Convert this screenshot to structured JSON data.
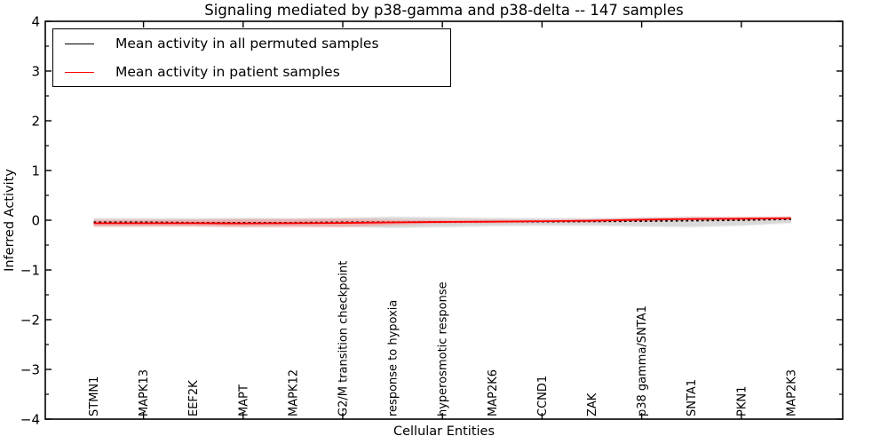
{
  "chart_data": {
    "type": "line",
    "title": "Signaling mediated by p38-gamma and p38-delta -- 147 samples",
    "xlabel": "Cellular Entities",
    "ylabel": "Inferred Activity",
    "ylim": [
      -4,
      4
    ],
    "yticks": [
      4,
      3,
      2,
      1,
      0,
      -1,
      -2,
      -3,
      -4
    ],
    "ytick_labels": [
      "4",
      "3",
      "2",
      "1",
      "0",
      "−1",
      "−2",
      "−3",
      "−4"
    ],
    "y_minor_tick_step": 0.5,
    "grid": false,
    "legend_position": "upper left",
    "categories": [
      "STMN1",
      "MAPK13",
      "EEF2K",
      "MAPT",
      "MAPK12",
      "G2/M transition checkpoint",
      "response to hypoxia",
      "hyperosmotic response",
      "MAP2K6",
      "CCND1",
      "ZAK",
      "p38 gamma/SNTA1",
      "SNTA1",
      "PKN1",
      "MAP2K3"
    ],
    "major_x_tick_indices": [
      1,
      3,
      5,
      7,
      9,
      11,
      13
    ],
    "series": [
      {
        "name": "Mean activity in all permuted samples",
        "color": "#000000",
        "line_style": "dashed",
        "values": [
          -0.04,
          -0.04,
          -0.05,
          -0.05,
          -0.05,
          -0.04,
          -0.04,
          -0.035,
          -0.03,
          -0.03,
          -0.025,
          -0.02,
          -0.01,
          0.0,
          0.02
        ]
      },
      {
        "name": "Mean activity in patient samples",
        "color": "#ff0000",
        "line_style": "solid",
        "values": [
          -0.06,
          -0.06,
          -0.06,
          -0.065,
          -0.06,
          -0.055,
          -0.045,
          -0.035,
          -0.03,
          -0.02,
          -0.01,
          0.01,
          0.025,
          0.03,
          0.04
        ]
      }
    ],
    "bands": [
      {
        "name": "permuted-samples-range",
        "color": "#bfbfbf",
        "opacity": 0.5,
        "upper": [
          0.03,
          0.03,
          0.03,
          0.035,
          0.03,
          0.04,
          0.06,
          0.05,
          0.035,
          0.03,
          0.03,
          0.045,
          0.06,
          0.05,
          0.06
        ],
        "lower": [
          -0.11,
          -0.11,
          -0.11,
          -0.12,
          -0.11,
          -0.12,
          -0.145,
          -0.13,
          -0.11,
          -0.1,
          -0.1,
          -0.115,
          -0.13,
          -0.1,
          -0.05
        ]
      },
      {
        "name": "patient-samples-range",
        "color": "#ff7a7a",
        "opacity": 0.38,
        "upper": [
          0.0,
          0.0,
          0.0,
          0.01,
          0.01,
          0.02,
          0.0,
          -0.01,
          -0.005,
          0.0,
          0.01,
          0.03,
          0.05,
          0.055,
          0.06
        ],
        "lower": [
          -0.12,
          -0.12,
          -0.115,
          -0.13,
          -0.13,
          -0.13,
          -0.09,
          -0.06,
          -0.05,
          -0.04,
          -0.03,
          -0.01,
          0.0,
          0.01,
          0.02
        ]
      }
    ]
  }
}
